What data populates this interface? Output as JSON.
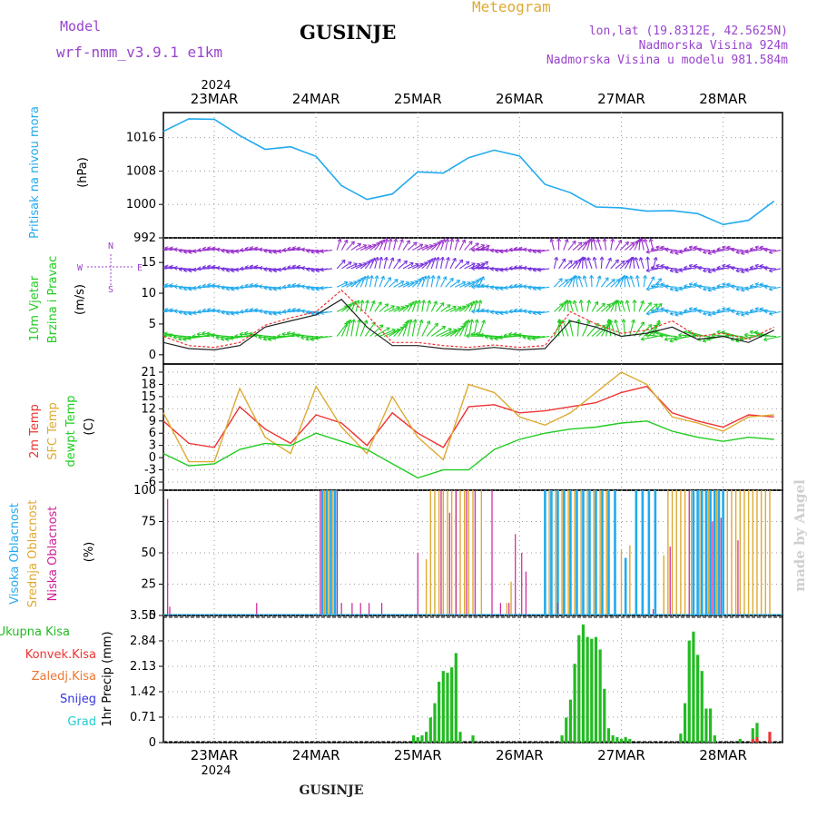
{
  "header": {
    "model_label": "Model",
    "model_value": "wrf-nmm_v3.9.1  e1km",
    "title": "GUSINJE",
    "meteogram_label": "Meteogram",
    "lonlat": "lon,lat (19.8312E, 42.5625N)",
    "elevation": "Nadmorska Visina 924m",
    "model_elevation": "Nadmorska Visina u modelu 981.584m",
    "year_top": "2024",
    "year_bottom": "2024",
    "footer_station": "GUSINJE",
    "watermark": "made by Angel"
  },
  "colors": {
    "pressure": "#22aaee",
    "wind_speed": "#222222",
    "gust": "#ee3333",
    "t2m": "#ee3333",
    "sfc_temp": "#ddaa33",
    "dewpoint": "#22cc22",
    "cloud_high": "#22aaee",
    "cloud_mid": "#ddaa33",
    "cloud_low": "#cc2299",
    "precip_total": "#22bb22",
    "precip_conv": "#ee3333",
    "precip_frz": "#ee7733",
    "snow": "#3333dd",
    "graupel": "#22cccc",
    "model_text": "#9944cc",
    "meteogram_text": "#ddaa33"
  },
  "chart_data": [
    {
      "type": "line",
      "panel": "pressure",
      "ylabel_lines": [
        "Pritisak na nivou mora",
        "(hPa)"
      ],
      "ylim": [
        992,
        1022
      ],
      "yticks": [
        992,
        1000,
        1008,
        1016
      ],
      "x_categories": [
        "23MAR",
        "24MAR",
        "25MAR",
        "26MAR",
        "27MAR",
        "28MAR"
      ],
      "x_hours": [
        0,
        6,
        12,
        18,
        24,
        30,
        36,
        42,
        48,
        54,
        60,
        66,
        72,
        78,
        84,
        90,
        96,
        102,
        108,
        114,
        120,
        126,
        132,
        138,
        144
      ],
      "series": [
        {
          "values": [
            1017.5,
            1020.5,
            1020.4,
            1016.5,
            1013.2,
            1013.8,
            1011.5,
            1004.5,
            1001.2,
            1002.5,
            1007.8,
            1007.5,
            1011.2,
            1013.0,
            1011.6,
            1004.8,
            1002.8,
            999.4,
            999.2,
            998.4,
            998.5,
            997.8,
            995.2,
            996.2,
            1000.8
          ]
        }
      ]
    },
    {
      "type": "line",
      "panel": "wind",
      "ylabel_lines": [
        "10m Vjetar",
        "Brzina i Pravac",
        "(m/s)"
      ],
      "ylim": [
        -1.5,
        19
      ],
      "yticks": [
        0,
        5,
        10,
        15
      ],
      "compass": [
        "N",
        "S",
        "W",
        "E"
      ],
      "x_hours": [
        0,
        6,
        12,
        18,
        24,
        30,
        36,
        42,
        48,
        54,
        60,
        66,
        72,
        78,
        84,
        90,
        96,
        102,
        108,
        114,
        120,
        126,
        132,
        138,
        144
      ],
      "series": [
        {
          "values": [
            2.0,
            1.0,
            0.8,
            1.5,
            4.5,
            5.5,
            6.5,
            9.0,
            4.5,
            1.5,
            1.5,
            1.0,
            0.8,
            1.2,
            0.8,
            1.0,
            5.5,
            4.5,
            3.0,
            3.5,
            4.5,
            2.5,
            3.0,
            2.0,
            4.0
          ]
        },
        {
          "values": [
            3.0,
            1.5,
            1.2,
            2.0,
            4.8,
            6.0,
            7.0,
            10.5,
            6.5,
            2.0,
            2.0,
            1.5,
            1.2,
            1.6,
            1.2,
            1.5,
            7.0,
            5.0,
            3.5,
            4.0,
            5.5,
            3.0,
            3.5,
            2.5,
            4.5
          ]
        }
      ],
      "vectors": [
        {
          "label": "high",
          "speed_level": 17,
          "color": "#9933cc"
        },
        {
          "label": "upper-mid",
          "speed_level": 14,
          "color": "#7733dd"
        },
        {
          "label": "mid",
          "speed_level": 11,
          "color": "#22aaee"
        },
        {
          "label": "low",
          "speed_level": 7,
          "color": "#22aaee"
        },
        {
          "label": "surface",
          "speed_level": 3,
          "color": "#22cc22"
        }
      ]
    },
    {
      "type": "line",
      "panel": "temperature",
      "ylabel_lines": [
        "2m Temp",
        "SFC Temp",
        "dewpt Temp",
        "(C)"
      ],
      "ylim": [
        -8,
        23
      ],
      "yticks": [
        -6,
        -3,
        0,
        3,
        6,
        9,
        12,
        15,
        18,
        21
      ],
      "x_hours": [
        0,
        6,
        12,
        18,
        24,
        30,
        36,
        42,
        48,
        54,
        60,
        66,
        72,
        78,
        84,
        90,
        96,
        102,
        108,
        114,
        120,
        126,
        132,
        138,
        144
      ],
      "series": [
        {
          "name": "2m Temp",
          "values": [
            9.0,
            3.5,
            2.5,
            12.5,
            7.0,
            3.5,
            10.5,
            8.5,
            3.0,
            11.0,
            6.0,
            2.5,
            12.5,
            13.0,
            11.0,
            11.5,
            12.5,
            13.5,
            16.0,
            17.5,
            11.0,
            9.0,
            7.5,
            10.5,
            10.0
          ]
        },
        {
          "name": "SFC Temp",
          "values": [
            11.0,
            -1.0,
            -1.0,
            17.0,
            5.0,
            1.0,
            17.5,
            7.5,
            1.0,
            15.0,
            5.0,
            -0.5,
            18.0,
            16.0,
            10.0,
            8.0,
            11.0,
            16.0,
            21.0,
            18.0,
            10.0,
            8.5,
            6.5,
            10.0,
            10.5
          ]
        },
        {
          "name": "dewpt Temp",
          "values": [
            1.0,
            -2.0,
            -1.5,
            2.0,
            3.5,
            3.0,
            6.0,
            4.0,
            2.0,
            -1.5,
            -5.0,
            -3.0,
            -3.0,
            2.0,
            4.5,
            6.0,
            7.0,
            7.5,
            8.5,
            9.0,
            6.5,
            5.0,
            4.0,
            5.0,
            4.5
          ]
        }
      ]
    },
    {
      "type": "bar",
      "panel": "clouds",
      "ylabel_lines": [
        "Visoka Oblacnost",
        "Srednja Oblacnost",
        "Niska Oblacnost",
        "(%)"
      ],
      "ylim": [
        0,
        100
      ],
      "yticks": [
        0,
        25,
        50,
        75,
        100
      ],
      "series": [
        {
          "name": "Visoka Oblacnost",
          "events": [
            [
              37.5,
              100
            ],
            [
              38.5,
              100
            ],
            [
              39.5,
              100
            ],
            [
              40.5,
              100
            ],
            [
              90.0,
              100
            ],
            [
              91.5,
              100
            ],
            [
              93.0,
              100
            ],
            [
              94.5,
              100
            ],
            [
              96.0,
              100
            ],
            [
              97.5,
              100
            ],
            [
              99.0,
              100
            ],
            [
              100.5,
              100
            ],
            [
              102.0,
              100
            ],
            [
              103.5,
              100
            ],
            [
              105.0,
              100
            ],
            [
              106.5,
              100
            ],
            [
              109.0,
              46
            ],
            [
              111.5,
              100
            ],
            [
              113.0,
              100
            ],
            [
              114.5,
              100
            ],
            [
              116.0,
              100
            ],
            [
              125.0,
              100
            ],
            [
              126.0,
              100
            ],
            [
              127.0,
              100
            ],
            [
              128.0,
              100
            ],
            [
              129.0,
              100
            ],
            [
              130.0,
              100
            ],
            [
              131.0,
              100
            ],
            [
              132.0,
              100
            ]
          ]
        },
        {
          "name": "Srednja Oblacnost",
          "events": [
            [
              38.0,
              100
            ],
            [
              39.0,
              100
            ],
            [
              40.0,
              100
            ],
            [
              62.0,
              45
            ],
            [
              63.0,
              100
            ],
            [
              64.0,
              100
            ],
            [
              65.0,
              100
            ],
            [
              66.0,
              100
            ],
            [
              67.0,
              100
            ],
            [
              68.0,
              100
            ],
            [
              69.0,
              100
            ],
            [
              70.0,
              100
            ],
            [
              71.0,
              100
            ],
            [
              72.0,
              100
            ],
            [
              73.0,
              100
            ],
            [
              75.0,
              100
            ],
            [
              81.0,
              10
            ],
            [
              82.0,
              27
            ],
            [
              91.0,
              100
            ],
            [
              92.5,
              100
            ],
            [
              94.0,
              100
            ],
            [
              95.5,
              100
            ],
            [
              97.0,
              100
            ],
            [
              98.5,
              100
            ],
            [
              100.0,
              100
            ],
            [
              101.5,
              100
            ],
            [
              103.0,
              100
            ],
            [
              104.5,
              100
            ],
            [
              108.0,
              52
            ],
            [
              110.0,
              56
            ],
            [
              118.0,
              48
            ],
            [
              119.0,
              100
            ],
            [
              120.0,
              100
            ],
            [
              121.0,
              100
            ],
            [
              122.0,
              100
            ],
            [
              123.0,
              100
            ],
            [
              124.5,
              100
            ],
            [
              126.5,
              100
            ],
            [
              128.5,
              100
            ],
            [
              130.5,
              100
            ],
            [
              133.0,
              100
            ],
            [
              134.0,
              100
            ],
            [
              135.0,
              100
            ],
            [
              136.0,
              100
            ],
            [
              137.0,
              100
            ],
            [
              138.0,
              100
            ],
            [
              139.0,
              100
            ],
            [
              140.0,
              100
            ],
            [
              141.0,
              100
            ],
            [
              142.0,
              100
            ],
            [
              143.0,
              100
            ]
          ]
        },
        {
          "name": "Niska Oblacnost",
          "events": [
            [
              1.0,
              93
            ],
            [
              1.5,
              7
            ],
            [
              22.0,
              10
            ],
            [
              37.0,
              100
            ],
            [
              41.0,
              100
            ],
            [
              42.0,
              10
            ],
            [
              44.5,
              10
            ],
            [
              46.5,
              10
            ],
            [
              48.5,
              10
            ],
            [
              51.5,
              10
            ],
            [
              60.0,
              50
            ],
            [
              65.5,
              100
            ],
            [
              67.5,
              82
            ],
            [
              69.0,
              100
            ],
            [
              71.5,
              100
            ],
            [
              73.5,
              100
            ],
            [
              77.5,
              100
            ],
            [
              79.5,
              10
            ],
            [
              81.5,
              10
            ],
            [
              83.0,
              65
            ],
            [
              84.5,
              50
            ],
            [
              85.5,
              35
            ],
            [
              93.0,
              10
            ],
            [
              115.5,
              5
            ],
            [
              119.5,
              55
            ],
            [
              124.0,
              100
            ],
            [
              129.5,
              75
            ],
            [
              131.5,
              78
            ],
            [
              135.5,
              60
            ]
          ]
        }
      ]
    },
    {
      "type": "bar",
      "panel": "precipitation",
      "ylabel_lines": [
        "1hr Precip (mm)"
      ],
      "ylim": [
        0,
        3.55
      ],
      "yticks": [
        0,
        0.71,
        1.42,
        2.13,
        2.84,
        3.55
      ],
      "legend": [
        "Ukupna Kisa",
        "Konvek.Kisa",
        "Zaledj.Kisa",
        "Snijeg",
        "Grad"
      ],
      "series": [
        {
          "name": "Ukupna Kisa",
          "hourly": [
            [
              59,
              0.2
            ],
            [
              60,
              0.15
            ],
            [
              61,
              0.2
            ],
            [
              62,
              0.3
            ],
            [
              63,
              0.7
            ],
            [
              64,
              1.1
            ],
            [
              65,
              1.7
            ],
            [
              66,
              2.0
            ],
            [
              67,
              1.95
            ],
            [
              68,
              2.1
            ],
            [
              69,
              2.5
            ],
            [
              70,
              0.3
            ],
            [
              73,
              0.2
            ],
            [
              94,
              0.2
            ],
            [
              95,
              0.7
            ],
            [
              96,
              1.2
            ],
            [
              97,
              2.2
            ],
            [
              98,
              3.0
            ],
            [
              99,
              3.3
            ],
            [
              100,
              2.95
            ],
            [
              101,
              2.9
            ],
            [
              102,
              2.95
            ],
            [
              103,
              2.6
            ],
            [
              104,
              1.5
            ],
            [
              105,
              0.4
            ],
            [
              106,
              0.2
            ],
            [
              107,
              0.15
            ],
            [
              108,
              0.1
            ],
            [
              109,
              0.15
            ],
            [
              110,
              0.1
            ],
            [
              122,
              0.25
            ],
            [
              123,
              1.1
            ],
            [
              124,
              2.85
            ],
            [
              125,
              3.1
            ],
            [
              126,
              2.45
            ],
            [
              127,
              2.0
            ],
            [
              128,
              0.95
            ],
            [
              129,
              0.95
            ],
            [
              130,
              0.2
            ],
            [
              136,
              0.1
            ],
            [
              139,
              0.4
            ],
            [
              140,
              0.55
            ]
          ]
        },
        {
          "name": "Konvek.Kisa",
          "hourly": [
            [
              139,
              0.1
            ],
            [
              140,
              0.15
            ],
            [
              143,
              0.3
            ]
          ]
        }
      ]
    }
  ]
}
